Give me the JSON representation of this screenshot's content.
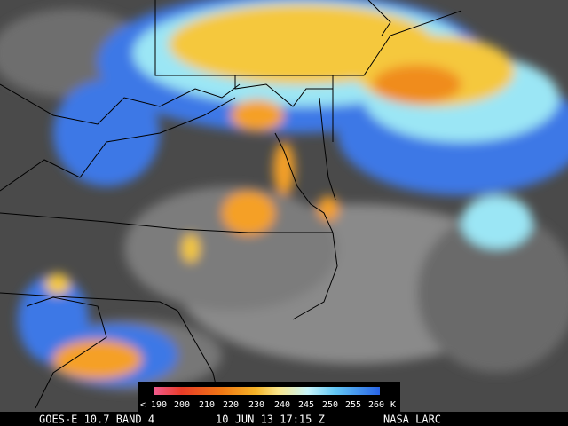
{
  "legend": {
    "labels": [
      "< 190",
      "200",
      "210",
      "220",
      "230",
      "240",
      "245",
      "250",
      "255",
      "260"
    ],
    "unit": "K"
  },
  "footer": {
    "satellite": "GOES-E 10.7 BAND 4",
    "time": "10 JUN 13 17:15 Z",
    "source": "NASA LARC"
  }
}
